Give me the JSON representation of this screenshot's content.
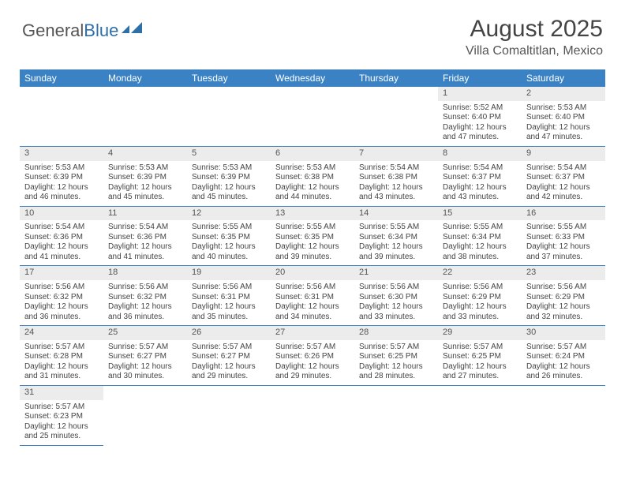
{
  "logo": {
    "part1": "General",
    "part2": "Blue"
  },
  "title": "August 2025",
  "location": "Villa Comaltitlan, Mexico",
  "days_of_week": [
    "Sunday",
    "Monday",
    "Tuesday",
    "Wednesday",
    "Thursday",
    "Friday",
    "Saturday"
  ],
  "colors": {
    "header_bg": "#3a82c4",
    "header_text": "#ffffff",
    "daynum_bg": "#ececec",
    "cell_border": "#3a82c4",
    "text": "#444444"
  },
  "weeks": [
    [
      null,
      null,
      null,
      null,
      null,
      {
        "n": "1",
        "sunrise": "5:52 AM",
        "sunset": "6:40 PM",
        "dl1": "12 hours",
        "dl2": "and 47 minutes."
      },
      {
        "n": "2",
        "sunrise": "5:53 AM",
        "sunset": "6:40 PM",
        "dl1": "12 hours",
        "dl2": "and 47 minutes."
      }
    ],
    [
      {
        "n": "3",
        "sunrise": "5:53 AM",
        "sunset": "6:39 PM",
        "dl1": "12 hours",
        "dl2": "and 46 minutes."
      },
      {
        "n": "4",
        "sunrise": "5:53 AM",
        "sunset": "6:39 PM",
        "dl1": "12 hours",
        "dl2": "and 45 minutes."
      },
      {
        "n": "5",
        "sunrise": "5:53 AM",
        "sunset": "6:39 PM",
        "dl1": "12 hours",
        "dl2": "and 45 minutes."
      },
      {
        "n": "6",
        "sunrise": "5:53 AM",
        "sunset": "6:38 PM",
        "dl1": "12 hours",
        "dl2": "and 44 minutes."
      },
      {
        "n": "7",
        "sunrise": "5:54 AM",
        "sunset": "6:38 PM",
        "dl1": "12 hours",
        "dl2": "and 43 minutes."
      },
      {
        "n": "8",
        "sunrise": "5:54 AM",
        "sunset": "6:37 PM",
        "dl1": "12 hours",
        "dl2": "and 43 minutes."
      },
      {
        "n": "9",
        "sunrise": "5:54 AM",
        "sunset": "6:37 PM",
        "dl1": "12 hours",
        "dl2": "and 42 minutes."
      }
    ],
    [
      {
        "n": "10",
        "sunrise": "5:54 AM",
        "sunset": "6:36 PM",
        "dl1": "12 hours",
        "dl2": "and 41 minutes."
      },
      {
        "n": "11",
        "sunrise": "5:54 AM",
        "sunset": "6:36 PM",
        "dl1": "12 hours",
        "dl2": "and 41 minutes."
      },
      {
        "n": "12",
        "sunrise": "5:55 AM",
        "sunset": "6:35 PM",
        "dl1": "12 hours",
        "dl2": "and 40 minutes."
      },
      {
        "n": "13",
        "sunrise": "5:55 AM",
        "sunset": "6:35 PM",
        "dl1": "12 hours",
        "dl2": "and 39 minutes."
      },
      {
        "n": "14",
        "sunrise": "5:55 AM",
        "sunset": "6:34 PM",
        "dl1": "12 hours",
        "dl2": "and 39 minutes."
      },
      {
        "n": "15",
        "sunrise": "5:55 AM",
        "sunset": "6:34 PM",
        "dl1": "12 hours",
        "dl2": "and 38 minutes."
      },
      {
        "n": "16",
        "sunrise": "5:55 AM",
        "sunset": "6:33 PM",
        "dl1": "12 hours",
        "dl2": "and 37 minutes."
      }
    ],
    [
      {
        "n": "17",
        "sunrise": "5:56 AM",
        "sunset": "6:32 PM",
        "dl1": "12 hours",
        "dl2": "and 36 minutes."
      },
      {
        "n": "18",
        "sunrise": "5:56 AM",
        "sunset": "6:32 PM",
        "dl1": "12 hours",
        "dl2": "and 36 minutes."
      },
      {
        "n": "19",
        "sunrise": "5:56 AM",
        "sunset": "6:31 PM",
        "dl1": "12 hours",
        "dl2": "and 35 minutes."
      },
      {
        "n": "20",
        "sunrise": "5:56 AM",
        "sunset": "6:31 PM",
        "dl1": "12 hours",
        "dl2": "and 34 minutes."
      },
      {
        "n": "21",
        "sunrise": "5:56 AM",
        "sunset": "6:30 PM",
        "dl1": "12 hours",
        "dl2": "and 33 minutes."
      },
      {
        "n": "22",
        "sunrise": "5:56 AM",
        "sunset": "6:29 PM",
        "dl1": "12 hours",
        "dl2": "and 33 minutes."
      },
      {
        "n": "23",
        "sunrise": "5:56 AM",
        "sunset": "6:29 PM",
        "dl1": "12 hours",
        "dl2": "and 32 minutes."
      }
    ],
    [
      {
        "n": "24",
        "sunrise": "5:57 AM",
        "sunset": "6:28 PM",
        "dl1": "12 hours",
        "dl2": "and 31 minutes."
      },
      {
        "n": "25",
        "sunrise": "5:57 AM",
        "sunset": "6:27 PM",
        "dl1": "12 hours",
        "dl2": "and 30 minutes."
      },
      {
        "n": "26",
        "sunrise": "5:57 AM",
        "sunset": "6:27 PM",
        "dl1": "12 hours",
        "dl2": "and 29 minutes."
      },
      {
        "n": "27",
        "sunrise": "5:57 AM",
        "sunset": "6:26 PM",
        "dl1": "12 hours",
        "dl2": "and 29 minutes."
      },
      {
        "n": "28",
        "sunrise": "5:57 AM",
        "sunset": "6:25 PM",
        "dl1": "12 hours",
        "dl2": "and 28 minutes."
      },
      {
        "n": "29",
        "sunrise": "5:57 AM",
        "sunset": "6:25 PM",
        "dl1": "12 hours",
        "dl2": "and 27 minutes."
      },
      {
        "n": "30",
        "sunrise": "5:57 AM",
        "sunset": "6:24 PM",
        "dl1": "12 hours",
        "dl2": "and 26 minutes."
      }
    ],
    [
      {
        "n": "31",
        "sunrise": "5:57 AM",
        "sunset": "6:23 PM",
        "dl1": "12 hours",
        "dl2": "and 25 minutes."
      },
      null,
      null,
      null,
      null,
      null,
      null
    ]
  ],
  "labels": {
    "sunrise": "Sunrise:",
    "sunset": "Sunset:",
    "daylight": "Daylight:"
  }
}
